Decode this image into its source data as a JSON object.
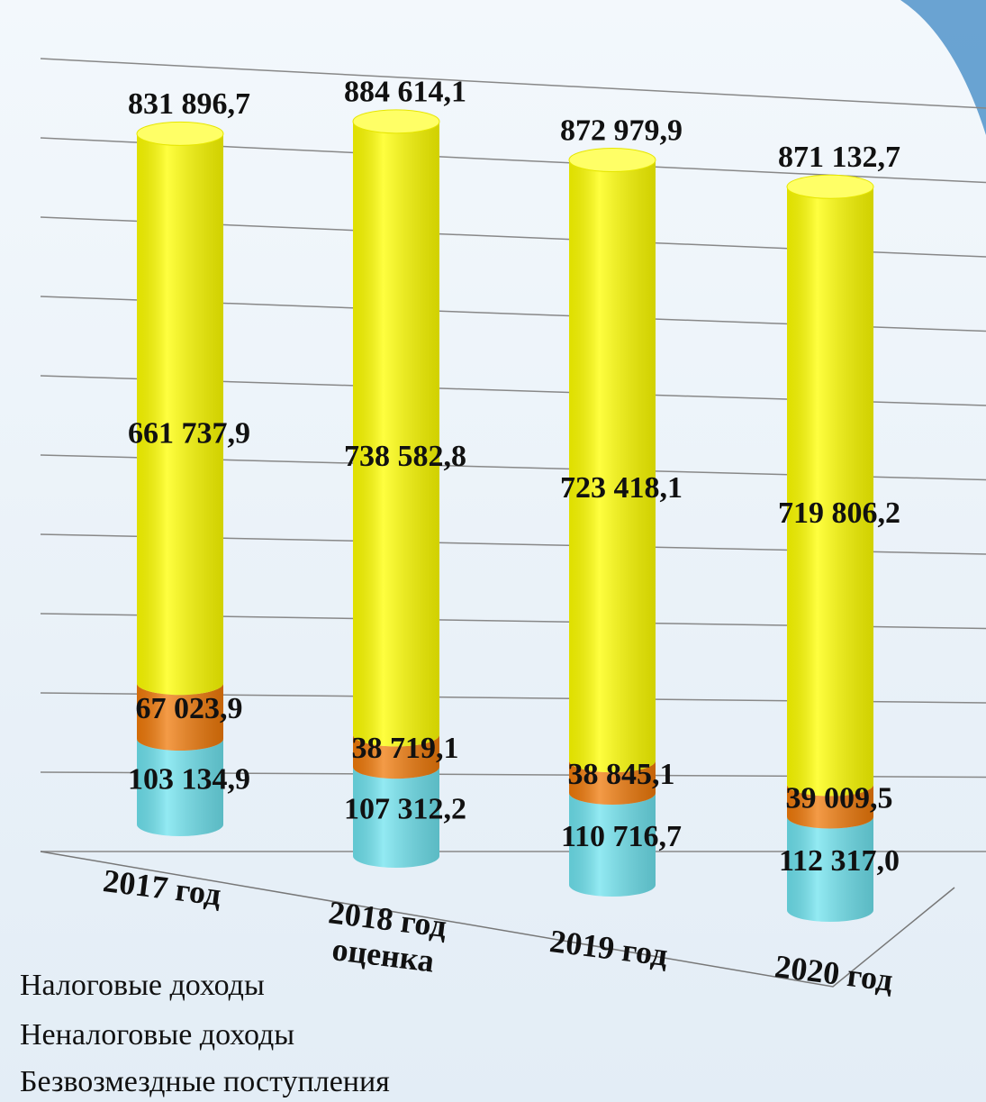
{
  "chart_data": {
    "type": "bar3d_stacked",
    "categories": [
      "2017 год",
      "2018 год оценка",
      "2019 год",
      "2020 год"
    ],
    "series": [
      {
        "name": "Безвозмездные поступления",
        "color": "#6fe3ef",
        "values": [
          103134.9,
          107312.2,
          110716.7,
          112317.0
        ],
        "value_labels": [
          "103 134,9",
          "107 312,2",
          "110 716,7",
          "112 317,0"
        ]
      },
      {
        "name": "Неналоговые доходы",
        "color": "#f07a0a",
        "values": [
          67023.9,
          38719.1,
          38845.1,
          39009.5
        ],
        "value_labels": [
          "67 023,9",
          "38 719,1",
          "38 845,1",
          "39 009,5"
        ]
      },
      {
        "name": "Налоговые доходы",
        "color": "#ffff00",
        "values": [
          661737.9,
          738582.8,
          723418.1,
          719806.2
        ],
        "value_labels": [
          "661 737,9",
          "738 582,8",
          "723 418,1",
          "719 806,2"
        ]
      }
    ],
    "totals": [
      831896.7,
      884614.1,
      872979.9,
      871132.7
    ],
    "total_labels": [
      "831 896,7",
      "884 614,1",
      "872 979,9",
      "871 132,7"
    ],
    "ylim": [
      0,
      900000
    ],
    "grid": true
  }
}
